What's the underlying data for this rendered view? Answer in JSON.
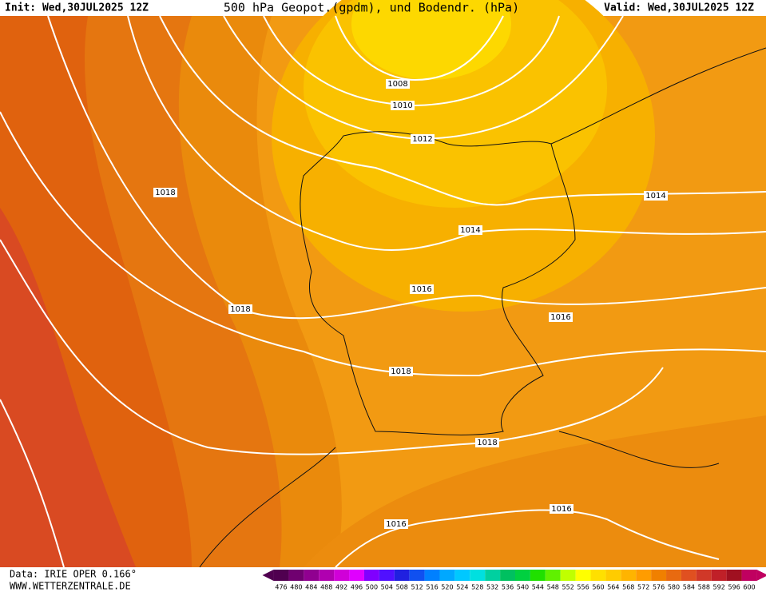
{
  "header": {
    "init": "Init: Wed,30JUL2025 12Z",
    "title": "500 hPa Geopot.(gpdm), und Bodendr. (hPa)",
    "valid": "Valid: Wed,30JUL2025 12Z"
  },
  "isobar_labels": [
    "1008",
    "1010",
    "1012",
    "1018",
    "1014",
    "1014",
    "1016",
    "1018",
    "1016",
    "1018",
    "1018",
    "1016",
    "1016"
  ],
  "footer": {
    "data": "Data: IRIE OPER 0.166°",
    "site": "WWW.WETTERZENTRALE.DE"
  },
  "scale": {
    "levels": [
      476,
      480,
      484,
      488,
      492,
      496,
      500,
      504,
      508,
      512,
      516,
      520,
      524,
      528,
      532,
      536,
      540,
      544,
      548,
      552,
      556,
      560,
      564,
      568,
      572,
      576,
      580,
      584,
      588,
      592,
      596,
      600
    ],
    "colors": [
      "#500050",
      "#700070",
      "#900090",
      "#b000b0",
      "#d000d8",
      "#e000ff",
      "#8000ff",
      "#5010ff",
      "#2020e0",
      "#1050f0",
      "#0080ff",
      "#00a8ff",
      "#00c8ff",
      "#00e0e0",
      "#00d0a0",
      "#00c060",
      "#00d040",
      "#20e000",
      "#60f000",
      "#c0ff00",
      "#ffff00",
      "#ffe000",
      "#ffcc00",
      "#ffb400",
      "#ff9c00",
      "#f08000",
      "#e86a10",
      "#e05020",
      "#d03828",
      "#c02028",
      "#a01020",
      "#c00060"
    ]
  }
}
